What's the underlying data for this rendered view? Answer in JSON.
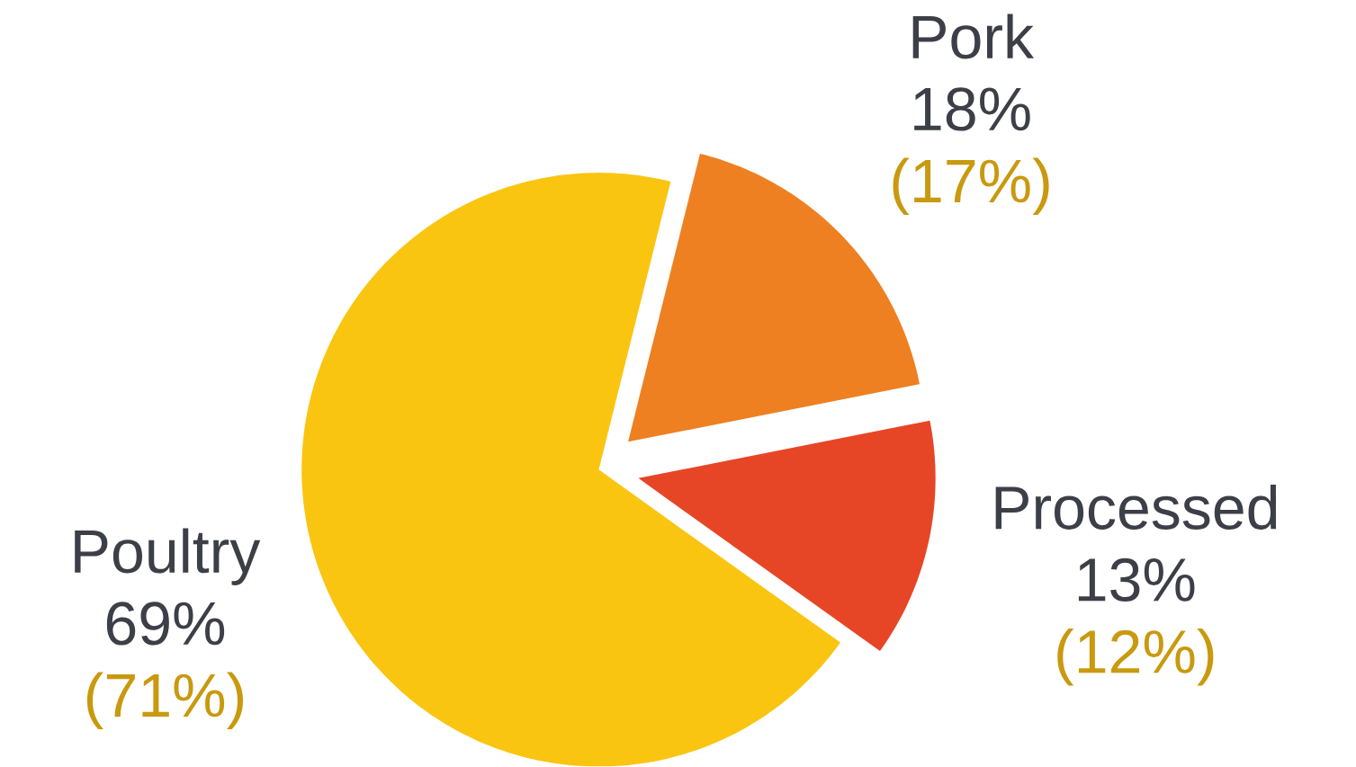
{
  "chart_data": {
    "type": "pie",
    "categories": [
      "Pork",
      "Processed",
      "Poultry"
    ],
    "values": [
      18,
      13,
      69
    ],
    "colors": [
      "#ee8022",
      "#e64626",
      "#fac511"
    ],
    "value_labels": [
      "18%",
      "13%",
      "69%"
    ],
    "annotations": [
      "(17%)",
      "(12%)",
      "(71%)"
    ]
  }
}
